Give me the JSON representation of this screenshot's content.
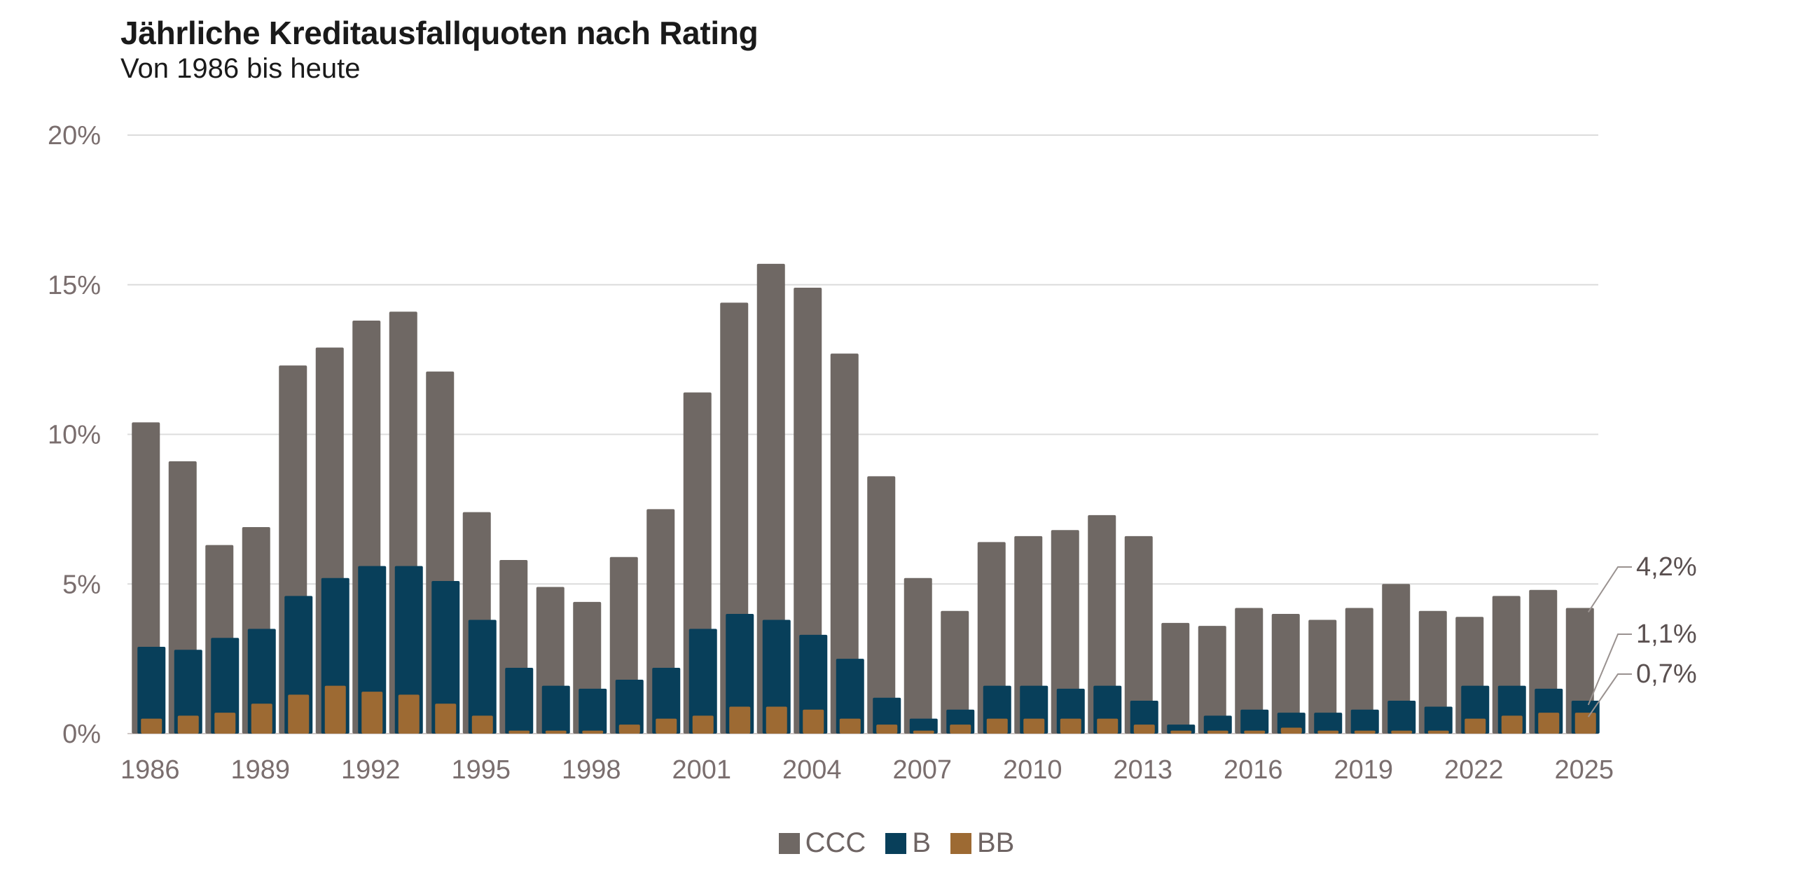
{
  "chart_data": {
    "type": "bar",
    "title": "Jährliche Kreditausfallquoten nach Rating",
    "subtitle": "Von 1986 bis heute",
    "ylim": [
      0,
      20
    ],
    "yticks": [
      "0%",
      "5%",
      "10%",
      "15%",
      "20%"
    ],
    "xtick_labels": [
      "1986",
      "1989",
      "1992",
      "1995",
      "1998",
      "2001",
      "2004",
      "2007",
      "2010",
      "2013",
      "2016",
      "2019",
      "2022",
      "2025"
    ],
    "grid": true,
    "legend_position": "bottom-center",
    "categories": [
      "1986",
      "1987",
      "1988",
      "1989",
      "1990",
      "1991",
      "1992",
      "1993",
      "1994",
      "1995",
      "1996",
      "1997",
      "1998",
      "1999",
      "2000",
      "2001",
      "2002",
      "2003",
      "2004",
      "2005",
      "2006",
      "2007",
      "2008",
      "2009",
      "2010",
      "2011",
      "2012",
      "2013",
      "2014",
      "2015",
      "2016",
      "2017",
      "2018",
      "2019",
      "2020",
      "2021",
      "2022",
      "2023",
      "2024",
      "2025"
    ],
    "series": [
      {
        "name": "CCC",
        "color": "#6f6864",
        "values": [
          10.4,
          9.1,
          6.3,
          6.9,
          12.3,
          12.9,
          13.8,
          14.1,
          12.1,
          7.4,
          5.8,
          4.9,
          4.4,
          5.9,
          7.5,
          11.4,
          14.4,
          15.7,
          14.9,
          12.7,
          8.6,
          5.2,
          4.1,
          6.4,
          6.6,
          6.8,
          7.3,
          6.6,
          3.7,
          3.6,
          4.2,
          4.0,
          3.8,
          4.2,
          5.0,
          4.1,
          3.9,
          4.6,
          4.8,
          4.2
        ]
      },
      {
        "name": "B",
        "color": "#083f5a",
        "values": [
          2.9,
          2.8,
          3.2,
          3.5,
          4.6,
          5.2,
          5.6,
          5.6,
          5.1,
          3.8,
          2.2,
          1.6,
          1.5,
          1.8,
          2.2,
          3.5,
          4.0,
          3.8,
          3.3,
          2.5,
          1.2,
          0.5,
          0.8,
          1.6,
          1.6,
          1.5,
          1.6,
          1.1,
          0.3,
          0.6,
          0.8,
          0.7,
          0.7,
          0.8,
          1.1,
          0.9,
          1.6,
          1.6,
          1.5,
          1.1
        ]
      },
      {
        "name": "BB",
        "color": "#9d6a33",
        "values": [
          0.5,
          0.6,
          0.7,
          1.0,
          1.3,
          1.6,
          1.4,
          1.3,
          1.0,
          0.6,
          0.1,
          0.1,
          0.1,
          0.3,
          0.5,
          0.6,
          0.9,
          0.9,
          0.8,
          0.5,
          0.3,
          0.1,
          0.3,
          0.5,
          0.5,
          0.5,
          0.5,
          0.3,
          0.1,
          0.1,
          0.1,
          0.2,
          0.1,
          0.1,
          0.1,
          0.1,
          0.5,
          0.6,
          0.7,
          0.7
        ]
      }
    ],
    "end_labels": [
      "4,2%",
      "1,1%",
      "0,7%"
    ]
  }
}
